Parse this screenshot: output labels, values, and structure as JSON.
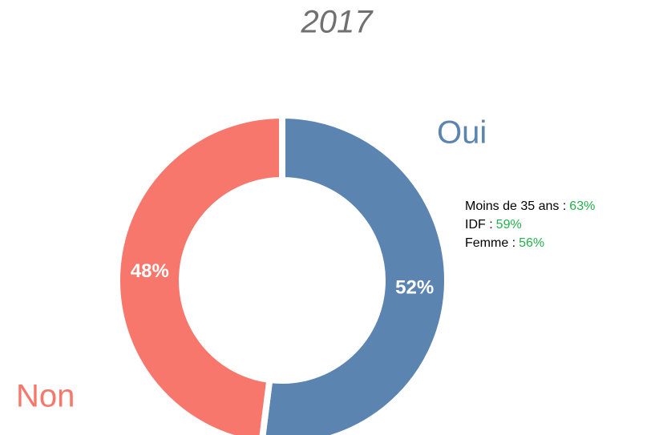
{
  "chart_data": {
    "type": "donut",
    "title": "2017",
    "categories": [
      "Oui",
      "Non"
    ],
    "values": [
      52,
      48
    ],
    "value_labels": [
      "52%",
      "48%"
    ],
    "colors": [
      "#5b84b1",
      "#f8776c"
    ],
    "annotations": [
      {
        "label": "Moins de 35 ans :",
        "value": "63%"
      },
      {
        "label": "IDF :",
        "value": "59%"
      },
      {
        "label": "Femme :",
        "value": "56%"
      }
    ]
  }
}
